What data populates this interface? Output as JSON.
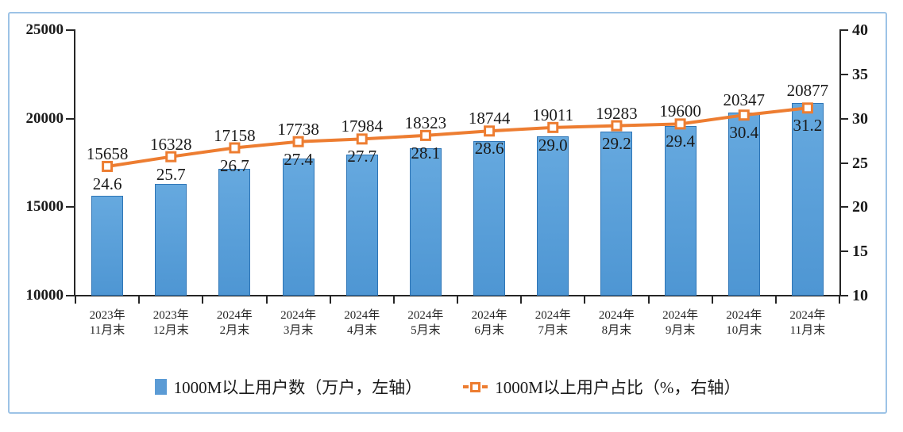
{
  "chart_data": {
    "type": "combo-bar-line",
    "title": "",
    "categories": [
      {
        "line1": "2023年",
        "line2": "11月末"
      },
      {
        "line1": "2023年",
        "line2": "12月末"
      },
      {
        "line1": "2024年",
        "line2": "2月末"
      },
      {
        "line1": "2024年",
        "line2": "3月末"
      },
      {
        "line1": "2024年",
        "line2": "4月末"
      },
      {
        "line1": "2024年",
        "line2": "5月末"
      },
      {
        "line1": "2024年",
        "line2": "6月末"
      },
      {
        "line1": "2024年",
        "line2": "7月末"
      },
      {
        "line1": "2024年",
        "line2": "8月末"
      },
      {
        "line1": "2024年",
        "line2": "9月末"
      },
      {
        "line1": "2024年",
        "line2": "10月末"
      },
      {
        "line1": "2024年",
        "line2": "11月末"
      }
    ],
    "series": [
      {
        "name": "1000M以上用户数（万户，左轴）",
        "type": "bar",
        "axis": "left",
        "values": [
          15658,
          16328,
          17158,
          17738,
          17984,
          18323,
          18744,
          19011,
          19283,
          19600,
          20347,
          20877
        ],
        "labels": [
          "15658",
          "16328",
          "17158",
          "17738",
          "17984",
          "18323",
          "18744",
          "19011",
          "19283",
          "19600",
          "20347",
          "20877"
        ]
      },
      {
        "name": "1000M以上用户占比（%，右轴）",
        "type": "line",
        "axis": "right",
        "values": [
          24.6,
          25.7,
          26.7,
          27.4,
          27.7,
          28.1,
          28.6,
          29.0,
          29.2,
          29.4,
          30.4,
          31.2
        ],
        "labels": [
          "24.6",
          "25.7",
          "26.7",
          "27.4",
          "27.7",
          "28.1",
          "28.6",
          "29.0",
          "29.2",
          "29.4",
          "30.4",
          "31.2"
        ]
      }
    ],
    "left_axis": {
      "min": 10000,
      "max": 25000,
      "ticks": [
        25000,
        20000,
        15000,
        10000
      ]
    },
    "right_axis": {
      "min": 10,
      "max": 40,
      "ticks": [
        40,
        35,
        30,
        25,
        20,
        15,
        10
      ]
    },
    "legend_position": "bottom",
    "grid": false,
    "colors": {
      "bar_fill": "#5B9BD5",
      "bar_fill_light": "#66A9DF",
      "bar_fill_dark": "#4E96D3",
      "bar_border": "#2E75B6",
      "line": "#ED7D31",
      "axis": "#262626",
      "text": "#1a1a1a",
      "frame_border": "#9DC3E6"
    }
  }
}
